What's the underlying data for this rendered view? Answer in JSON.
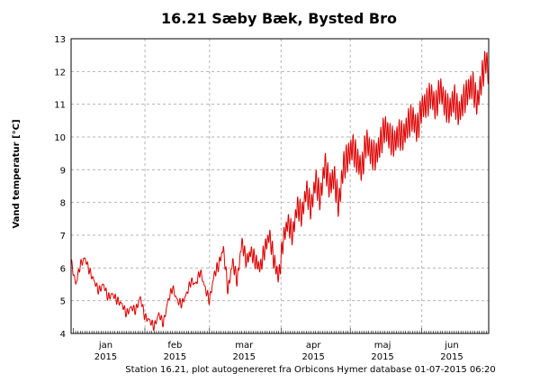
{
  "chart_data": {
    "type": "line",
    "title": "16.21 Sæby Bæk, Bysted Bro",
    "xlabel": "",
    "ylabel": "Vand temperatur [°C]",
    "xlim": [
      "2014-12-31",
      "2015-06-30"
    ],
    "ylim": [
      4,
      13
    ],
    "yticks": [
      4,
      5,
      6,
      7,
      8,
      9,
      10,
      11,
      12,
      13
    ],
    "xticks": [
      {
        "month": "jan",
        "year": "2015",
        "at": "2015-01-15"
      },
      {
        "month": "feb",
        "year": "2015",
        "at": "2015-02-14"
      },
      {
        "month": "mar",
        "year": "2015",
        "at": "2015-03-16"
      },
      {
        "month": "apr",
        "year": "2015",
        "at": "2015-04-15"
      },
      {
        "month": "maj",
        "year": "2015",
        "at": "2015-05-15"
      },
      {
        "month": "jun",
        "year": "2015",
        "at": "2015-06-14"
      }
    ],
    "grid": true,
    "series": [
      {
        "color": "#dd0000",
        "x": [
          "2014-12-31",
          "2015-01-02",
          "2015-01-04",
          "2015-01-06",
          "2015-01-08",
          "2015-01-10",
          "2015-01-12",
          "2015-01-14",
          "2015-01-16",
          "2015-01-18",
          "2015-01-20",
          "2015-01-22",
          "2015-01-24",
          "2015-01-26",
          "2015-01-28",
          "2015-01-30",
          "2015-02-01",
          "2015-02-03",
          "2015-02-05",
          "2015-02-07",
          "2015-02-09",
          "2015-02-11",
          "2015-02-13",
          "2015-02-15",
          "2015-02-17",
          "2015-02-19",
          "2015-02-21",
          "2015-02-23",
          "2015-02-25",
          "2015-02-27",
          "2015-03-01",
          "2015-03-03",
          "2015-03-05",
          "2015-03-07",
          "2015-03-09",
          "2015-03-11",
          "2015-03-13",
          "2015-03-15",
          "2015-03-17",
          "2015-03-19",
          "2015-03-21",
          "2015-03-23",
          "2015-03-25",
          "2015-03-27",
          "2015-03-29",
          "2015-03-31",
          "2015-04-02",
          "2015-04-04",
          "2015-04-06",
          "2015-04-08",
          "2015-04-10",
          "2015-04-12",
          "2015-04-14",
          "2015-04-16",
          "2015-04-18",
          "2015-04-20",
          "2015-04-22",
          "2015-04-24",
          "2015-04-26",
          "2015-04-28",
          "2015-04-30",
          "2015-05-02",
          "2015-05-04",
          "2015-05-06",
          "2015-05-08",
          "2015-05-10",
          "2015-05-12",
          "2015-05-14",
          "2015-05-16",
          "2015-05-18",
          "2015-05-20",
          "2015-05-22",
          "2015-05-24",
          "2015-05-26",
          "2015-05-28",
          "2015-05-30",
          "2015-06-01",
          "2015-06-03",
          "2015-06-05",
          "2015-06-07",
          "2015-06-09",
          "2015-06-11",
          "2015-06-13",
          "2015-06-15",
          "2015-06-17",
          "2015-06-19",
          "2015-06-21",
          "2015-06-23",
          "2015-06-25",
          "2015-06-27",
          "2015-06-29",
          "2015-06-30"
        ],
        "values": [
          6.2,
          5.5,
          6.1,
          6.3,
          5.9,
          5.6,
          5.3,
          5.5,
          5.1,
          5.2,
          5.0,
          4.9,
          4.6,
          4.8,
          4.7,
          5.1,
          4.5,
          4.4,
          4.2,
          4.6,
          4.3,
          5.0,
          5.4,
          5.0,
          4.9,
          5.2,
          5.6,
          5.5,
          5.9,
          5.4,
          5.0,
          5.8,
          6.1,
          6.6,
          5.3,
          6.2,
          5.6,
          6.8,
          6.2,
          6.5,
          6.2,
          6.0,
          6.6,
          7.0,
          6.2,
          5.7,
          6.9,
          7.4,
          7.0,
          7.9,
          7.6,
          8.4,
          7.8,
          8.7,
          8.1,
          9.2,
          8.5,
          8.8,
          7.9,
          9.1,
          9.4,
          9.7,
          9.3,
          9.0,
          9.9,
          9.5,
          9.4,
          9.8,
          10.3,
          10.0,
          9.8,
          10.1,
          10.0,
          10.4,
          10.6,
          10.2,
          10.9,
          11.0,
          11.3,
          10.9,
          11.5,
          11.0,
          10.8,
          11.2,
          10.7,
          11.1,
          11.4,
          11.6,
          11.0,
          11.8,
          12.4,
          11.8
        ]
      }
    ],
    "footer": "Station 16.21, plot autogenereret fra Orbicons Hymer database 01-07-2015 06:20"
  }
}
